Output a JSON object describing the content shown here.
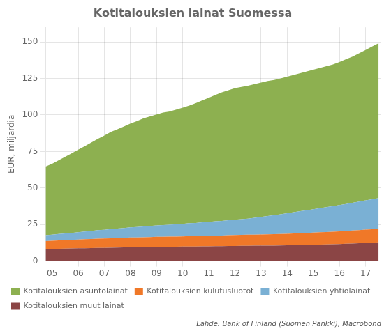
{
  "chart_data": {
    "type": "area",
    "stacked": true,
    "title": "Kotitalouksien lainat Suomessa",
    "ylabel": "EUR, miljardia",
    "source": "Lähde: Bank of Finland (Suomen Pankki), Macrobond",
    "grid": true,
    "legend": "bottom",
    "xlim": [
      4.75,
      17.6
    ],
    "xticks": [
      {
        "value": 5,
        "label": "05"
      },
      {
        "value": 6,
        "label": "06"
      },
      {
        "value": 7,
        "label": "07"
      },
      {
        "value": 8,
        "label": "08"
      },
      {
        "value": 9,
        "label": "09"
      },
      10,
      11,
      12,
      13,
      14,
      15,
      16,
      17
    ],
    "ylim": [
      0,
      160
    ],
    "yticks": [
      0,
      25,
      50,
      75,
      100,
      125,
      150
    ],
    "x": [
      4.75,
      5.0,
      5.25,
      5.5,
      5.75,
      6.0,
      6.25,
      6.5,
      6.75,
      7.0,
      7.25,
      7.5,
      7.75,
      8.0,
      8.25,
      8.5,
      8.75,
      9.0,
      9.25,
      9.5,
      9.75,
      10.0,
      10.25,
      10.5,
      10.75,
      11.0,
      11.25,
      11.5,
      11.75,
      12.0,
      12.25,
      12.5,
      12.75,
      13.0,
      13.25,
      13.5,
      13.75,
      14.0,
      14.25,
      14.5,
      14.75,
      15.0,
      15.25,
      15.5,
      15.75,
      16.0,
      16.25,
      16.5,
      16.75,
      17.0,
      17.25,
      17.5
    ],
    "series": [
      {
        "name": "Kotitalouksien muut lainat",
        "color": "#8b4545",
        "values": [
          8.2,
          8.3,
          8.4,
          8.5,
          8.6,
          8.7,
          8.8,
          8.9,
          9.0,
          9.0,
          9.1,
          9.2,
          9.3,
          9.4,
          9.4,
          9.5,
          9.6,
          9.7,
          9.7,
          9.8,
          9.8,
          9.9,
          10.0,
          10.0,
          10.1,
          10.1,
          10.2,
          10.2,
          10.3,
          10.3,
          10.4,
          10.4,
          10.5,
          10.5,
          10.6,
          10.6,
          10.7,
          10.8,
          10.9,
          11.0,
          11.1,
          11.2,
          11.3,
          11.4,
          11.5,
          11.6,
          11.8,
          12.0,
          12.2,
          12.4,
          12.6,
          12.8
        ]
      },
      {
        "name": "Kotitalouksien kulutusluotot",
        "color": "#f07828",
        "values": [
          5.5,
          5.6,
          5.7,
          5.8,
          5.9,
          6.0,
          6.1,
          6.2,
          6.3,
          6.4,
          6.5,
          6.5,
          6.6,
          6.7,
          6.7,
          6.8,
          6.8,
          6.9,
          6.9,
          6.9,
          7.0,
          7.0,
          7.1,
          7.1,
          7.2,
          7.2,
          7.3,
          7.3,
          7.4,
          7.5,
          7.5,
          7.6,
          7.6,
          7.7,
          7.7,
          7.8,
          7.8,
          7.9,
          8.0,
          8.1,
          8.2,
          8.3,
          8.4,
          8.5,
          8.6,
          8.7,
          8.8,
          8.9,
          9.0,
          9.1,
          9.2,
          9.3
        ]
      },
      {
        "name": "Kotitalouksien yhtiölainat",
        "color": "#7ab0d4",
        "values": [
          4.0,
          4.2,
          4.4,
          4.6,
          4.8,
          5.0,
          5.3,
          5.5,
          5.8,
          6.0,
          6.3,
          6.5,
          6.7,
          7.0,
          7.2,
          7.4,
          7.6,
          7.8,
          8.0,
          8.2,
          8.4,
          8.6,
          8.8,
          9.0,
          9.2,
          9.5,
          9.7,
          10.0,
          10.2,
          10.5,
          10.8,
          11.0,
          11.5,
          12.0,
          12.5,
          13.0,
          13.5,
          14.0,
          14.5,
          15.0,
          15.5,
          16.0,
          16.5,
          17.0,
          17.5,
          18.0,
          18.5,
          19.0,
          19.5,
          20.0,
          20.5,
          21.0
        ]
      },
      {
        "name": "Kotitalouksien asuntolainat",
        "color": "#8db050",
        "values": [
          47.0,
          48.5,
          50.5,
          52.5,
          54.5,
          56.5,
          58.5,
          60.5,
          62.5,
          64.5,
          66.5,
          68.0,
          69.5,
          71.0,
          72.5,
          74.0,
          75.0,
          76.0,
          77.0,
          77.5,
          78.5,
          79.5,
          80.5,
          82.0,
          83.5,
          85.0,
          86.5,
          88.0,
          89.0,
          90.0,
          90.5,
          91.0,
          91.5,
          92.0,
          92.5,
          92.5,
          93.0,
          93.5,
          94.0,
          94.5,
          95.0,
          95.5,
          96.0,
          96.5,
          97.0,
          98.0,
          99.0,
          100.0,
          101.5,
          103.0,
          104.5,
          106.0
        ]
      }
    ]
  }
}
